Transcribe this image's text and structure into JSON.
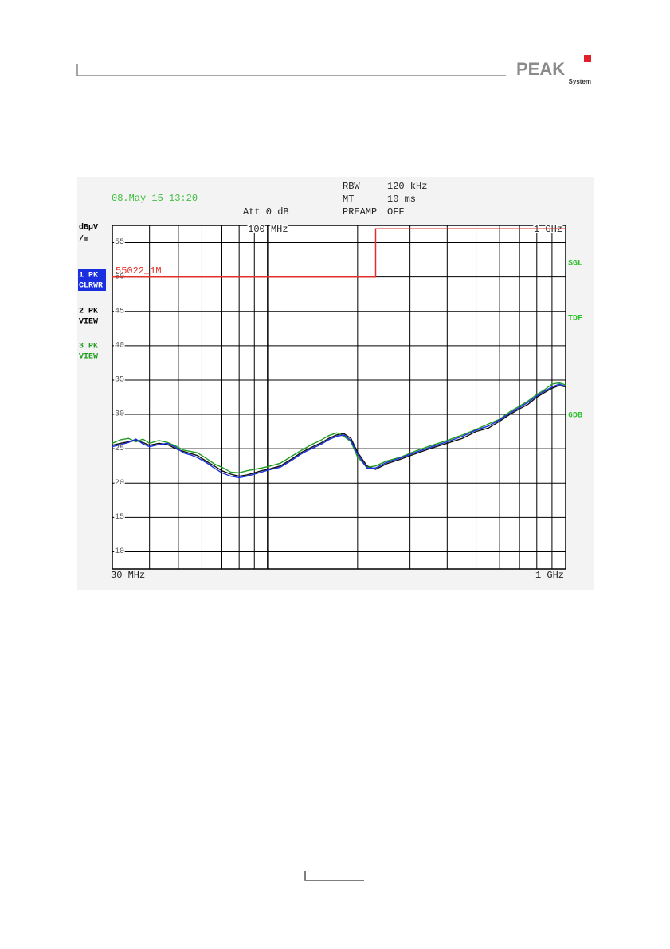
{
  "header": {
    "logo": "PEAK",
    "logo_sub": "System"
  },
  "chart_data": {
    "type": "line",
    "timestamp": "08.May 15 13:20",
    "settings": [
      "Att 0 dB",
      "RBW",
      "120 kHz",
      "MT",
      "10 ms",
      "PREAMP",
      "OFF"
    ],
    "y_unit": [
      "dBµV",
      "/m"
    ],
    "right_labels": [
      "SGL",
      "TDF",
      "6DB"
    ],
    "xscale": "log",
    "xlim": [
      30,
      1000
    ],
    "ylim": [
      7.5,
      57.5
    ],
    "yticks": [
      55,
      50,
      45,
      40,
      35,
      30,
      25,
      20,
      15,
      10
    ],
    "xgrid": [
      40,
      50,
      60,
      70,
      80,
      90,
      100,
      200,
      300,
      400,
      500,
      600,
      700,
      800,
      900,
      1000
    ],
    "xticks": [
      {
        "value": 30,
        "label": "30 MHz"
      },
      {
        "value": 1000,
        "label": "1 GHz"
      }
    ],
    "top_xticks": [
      {
        "value": 100,
        "label": "100 MHz"
      },
      {
        "value": 1000,
        "label": "1 GHz"
      }
    ],
    "grid": true,
    "limit_line": {
      "name": "55022_1M",
      "color": "#e0302a",
      "x": [
        30,
        230,
        230,
        1000
      ],
      "values": [
        50,
        50,
        57,
        57
      ]
    },
    "x": [
      30,
      32,
      34,
      36,
      38,
      40,
      43,
      46,
      49,
      52,
      55,
      58,
      62,
      66,
      70,
      75,
      80,
      85,
      90,
      95,
      100,
      110,
      120,
      130,
      140,
      150,
      160,
      170,
      180,
      190,
      200,
      215,
      230,
      250,
      280,
      310,
      350,
      400,
      450,
      500,
      550,
      600,
      650,
      700,
      750,
      800,
      850,
      900,
      950,
      1000
    ],
    "series": [
      {
        "name": "2 PK",
        "mode": "VIEW",
        "color": "#111111",
        "values": [
          25.5,
          25.8,
          26.0,
          26.2,
          25.9,
          25.5,
          25.8,
          25.6,
          25.0,
          24.6,
          24.3,
          24.0,
          23.2,
          22.5,
          21.8,
          21.3,
          21.0,
          21.2,
          21.5,
          21.8,
          22.0,
          22.5,
          23.5,
          24.5,
          25.2,
          25.8,
          26.5,
          27.0,
          27.2,
          26.5,
          24.5,
          22.5,
          22.0,
          22.8,
          23.5,
          24.2,
          25.0,
          25.8,
          26.5,
          27.5,
          28.0,
          29.0,
          30.0,
          30.8,
          31.5,
          32.5,
          33.2,
          33.8,
          34.2,
          34.0
        ]
      },
      {
        "name": "3 PK",
        "mode": "VIEW",
        "color": "#1f9e1f",
        "values": [
          25.8,
          26.3,
          26.5,
          26.0,
          26.4,
          25.8,
          26.2,
          25.9,
          25.4,
          24.8,
          24.6,
          24.4,
          23.6,
          22.8,
          22.3,
          21.6,
          21.5,
          21.8,
          22.0,
          22.2,
          22.4,
          22.9,
          23.9,
          24.8,
          25.6,
          26.2,
          26.9,
          27.3,
          26.8,
          26.0,
          23.8,
          22.3,
          22.5,
          23.2,
          23.8,
          24.6,
          25.4,
          26.2,
          27.0,
          27.8,
          28.6,
          29.3,
          30.4,
          31.2,
          32.0,
          32.9,
          33.6,
          34.4,
          34.6,
          34.3
        ]
      },
      {
        "name": "1 PK",
        "mode": "CLRWR",
        "color": "#1a2fe0",
        "values": [
          25.3,
          25.6,
          25.9,
          26.4,
          25.7,
          25.3,
          25.6,
          25.8,
          25.2,
          24.4,
          24.1,
          23.7,
          23.0,
          22.2,
          21.5,
          21.0,
          20.8,
          21.0,
          21.3,
          21.6,
          21.9,
          22.3,
          23.3,
          24.3,
          25.0,
          25.6,
          26.3,
          26.8,
          27.0,
          26.2,
          24.2,
          22.2,
          22.2,
          23.0,
          23.7,
          24.4,
          25.2,
          26.0,
          26.8,
          27.7,
          28.3,
          29.2,
          30.2,
          31.0,
          31.8,
          32.7,
          33.4,
          34.0,
          34.4,
          34.1
        ]
      }
    ]
  }
}
